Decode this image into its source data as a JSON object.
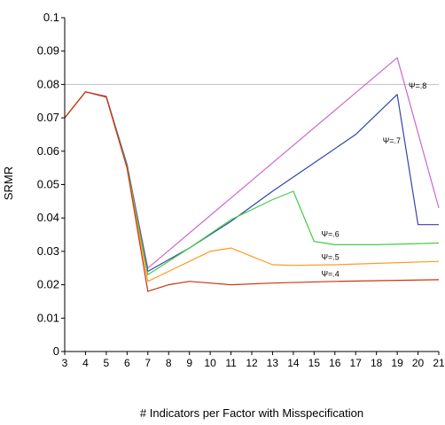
{
  "chart_data": {
    "type": "line",
    "title": "",
    "xlabel": "# Indicators per Factor with Misspecification",
    "ylabel": "SRMR",
    "xlim": [
      3,
      21
    ],
    "ylim": [
      0,
      0.1
    ],
    "x_ticks": [
      3,
      4,
      5,
      6,
      7,
      8,
      9,
      10,
      11,
      12,
      13,
      14,
      15,
      16,
      17,
      18,
      19,
      20,
      21
    ],
    "y_ticks": [
      "0",
      "0.01",
      "0.02",
      "0.03",
      "0.04",
      "0.05",
      "0.06",
      "0.07",
      "0.08",
      "0.09",
      "0.1"
    ],
    "grid": false,
    "reference_line": {
      "y": 0.08,
      "color": "#c0c0c0"
    },
    "series": [
      {
        "name": "Ψ=.8",
        "color": "#cc66cc",
        "label_at": [
          19.55,
          0.0788
        ],
        "points": [
          [
            3,
            0.07
          ],
          [
            4,
            0.0778
          ],
          [
            5,
            0.0765
          ],
          [
            6,
            0.056
          ],
          [
            7,
            0.025
          ],
          [
            19,
            0.088
          ],
          [
            21,
            0.043
          ]
        ]
      },
      {
        "name": "Ψ=.7",
        "color": "#3344aa",
        "label_at": [
          18.3,
          0.0623
        ],
        "points": [
          [
            3,
            0.07
          ],
          [
            4,
            0.0778
          ],
          [
            5,
            0.0763
          ],
          [
            6,
            0.056
          ],
          [
            7,
            0.024
          ],
          [
            9,
            0.031
          ],
          [
            11,
            0.039
          ],
          [
            13,
            0.048
          ],
          [
            15,
            0.0565
          ],
          [
            17,
            0.065
          ],
          [
            19,
            0.077
          ],
          [
            20,
            0.038
          ],
          [
            21,
            0.038
          ]
        ]
      },
      {
        "name": "Ψ=.6",
        "color": "#44cc44",
        "label_at": [
          15.35,
          0.0344
        ],
        "points": [
          [
            3,
            0.07
          ],
          [
            4,
            0.0778
          ],
          [
            5,
            0.0762
          ],
          [
            6,
            0.0555
          ],
          [
            7,
            0.023
          ],
          [
            9,
            0.031
          ],
          [
            11,
            0.0395
          ],
          [
            13,
            0.0455
          ],
          [
            14,
            0.048
          ],
          [
            15,
            0.033
          ],
          [
            16,
            0.032
          ],
          [
            18,
            0.032
          ],
          [
            21,
            0.0325
          ]
        ]
      },
      {
        "name": "Ψ=.5",
        "color": "#ff9922",
        "label_at": [
          15.35,
          0.0274
        ],
        "points": [
          [
            3,
            0.07
          ],
          [
            4,
            0.0778
          ],
          [
            5,
            0.0762
          ],
          [
            6,
            0.055
          ],
          [
            7,
            0.021
          ],
          [
            8,
            0.024
          ],
          [
            9,
            0.027
          ],
          [
            10,
            0.03
          ],
          [
            11,
            0.031
          ],
          [
            12,
            0.0285
          ],
          [
            13,
            0.026
          ],
          [
            14,
            0.0258
          ],
          [
            16,
            0.026
          ],
          [
            21,
            0.027
          ]
        ]
      },
      {
        "name": "Ψ=.4",
        "color": "#cc3311",
        "label_at": [
          15.35,
          0.0224
        ],
        "points": [
          [
            3,
            0.07
          ],
          [
            4,
            0.0778
          ],
          [
            5,
            0.0762
          ],
          [
            6,
            0.055
          ],
          [
            7,
            0.018
          ],
          [
            8,
            0.02
          ],
          [
            9,
            0.021
          ],
          [
            10,
            0.0205
          ],
          [
            11,
            0.02
          ],
          [
            13,
            0.0205
          ],
          [
            16,
            0.021
          ],
          [
            21,
            0.0215
          ]
        ]
      }
    ]
  }
}
